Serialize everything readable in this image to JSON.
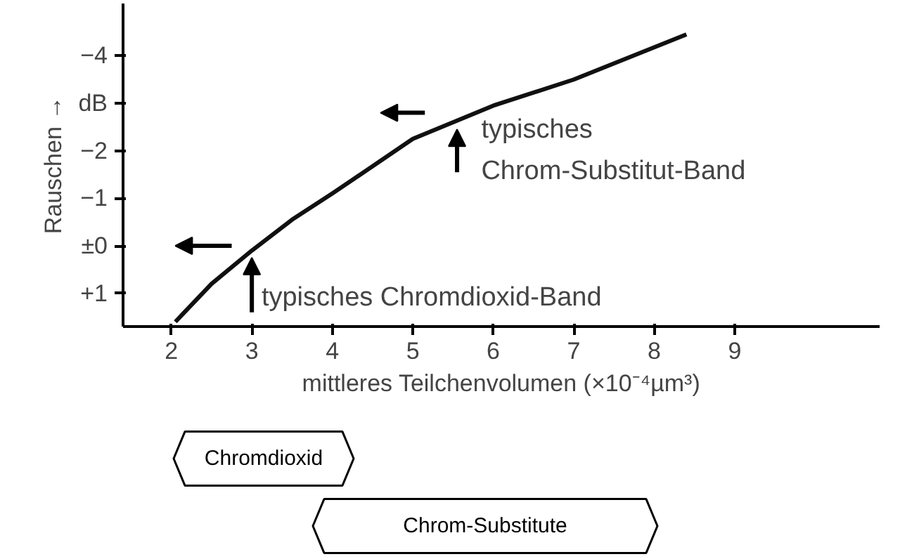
{
  "chart_data": {
    "type": "line",
    "xlabel": "mittleres Teilchenvolumen (×10⁻⁴µm³)",
    "ylabel": "Rauschen →",
    "x": [
      2.05,
      2.5,
      3,
      3.5,
      4,
      5,
      6,
      7,
      8.4
    ],
    "series": [
      {
        "color": "#111111",
        "values": [
          1.6,
          0.8,
          0.1,
          -0.55,
          -1.1,
          -2.25,
          -2.95,
          -3.5,
          -4.45
        ]
      }
    ],
    "xlim": [
      1.4,
      10.8
    ],
    "ylim": [
      1.7,
      -5.1
    ],
    "xticks": [
      2,
      3,
      4,
      5,
      6,
      7,
      8,
      9
    ],
    "yticks": [
      {
        "value": -4,
        "label": "−4"
      },
      {
        "value": -3,
        "label": "dB"
      },
      {
        "value": -2,
        "label": "−2"
      },
      {
        "value": -1,
        "label": "−1"
      },
      {
        "value": 0,
        "label": "±0"
      },
      {
        "value": 1,
        "label": "+1"
      }
    ],
    "annotations": [
      {
        "text": "typisches Chromdioxid-Band",
        "x": 3,
        "y": 0.1
      },
      {
        "text": "typisches\nChrom-Substitut-Band",
        "x": 5.55,
        "y": -2.6
      },
      "Chromdioxid",
      "Chrom-Substitute"
    ],
    "grid": false,
    "marker": "none",
    "line_style": "solid"
  }
}
